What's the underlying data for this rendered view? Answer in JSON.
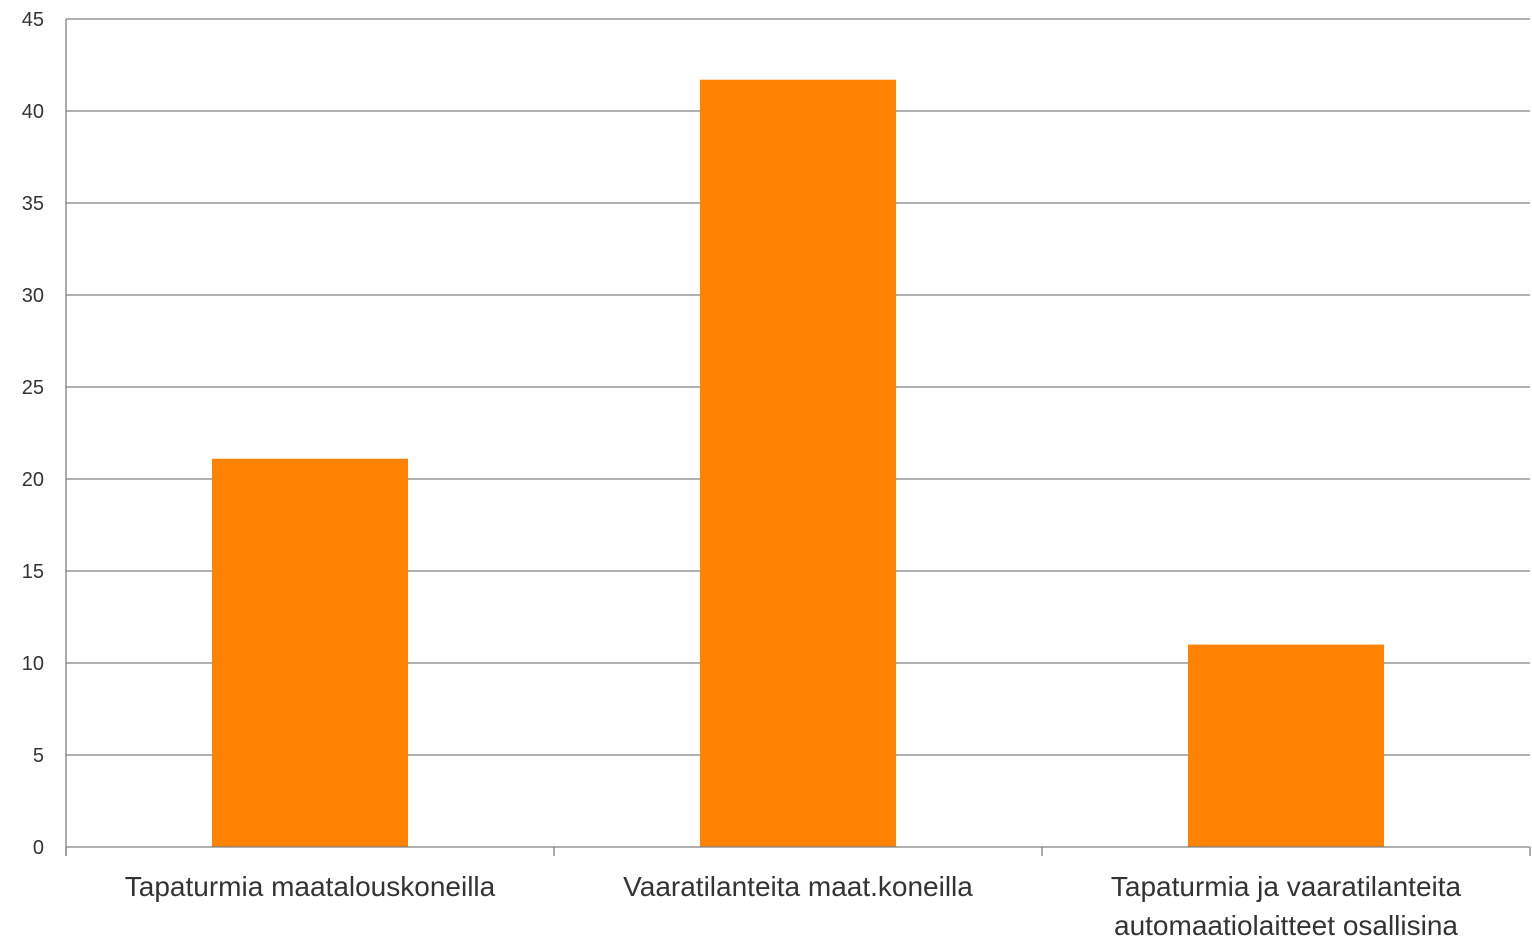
{
  "chart_data": {
    "type": "bar",
    "categories": [
      [
        "Tapaturmia maatalouskoneilla"
      ],
      [
        "Vaaratilanteita maat.koneilla"
      ],
      [
        "Tapaturmia ja vaaratilanteita",
        "automaatiolaitteet osallisina"
      ]
    ],
    "values": [
      21.1,
      41.7,
      11
    ],
    "ylim": [
      0,
      45
    ],
    "yticks": [
      0,
      5,
      10,
      15,
      20,
      25,
      30,
      35,
      40,
      45
    ],
    "bar_color": "#ff8300",
    "grid": true,
    "legend": "none"
  }
}
